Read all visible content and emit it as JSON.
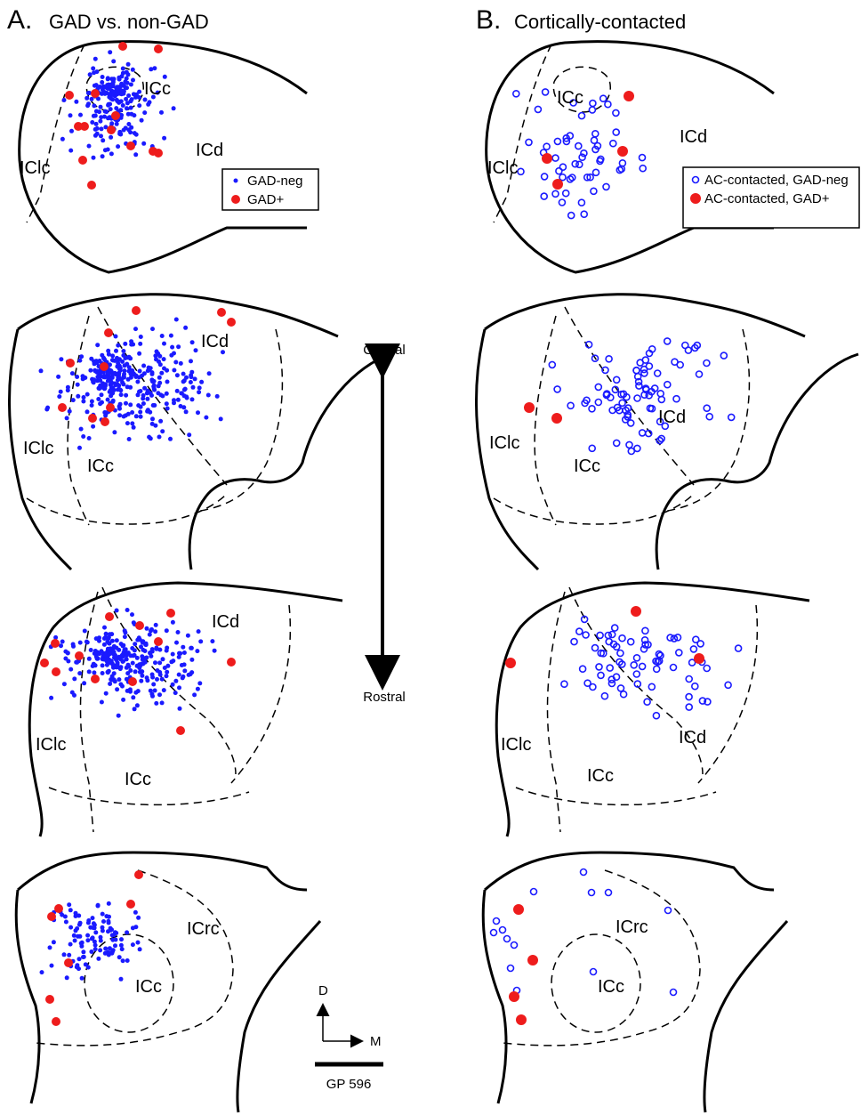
{
  "panels": [
    {
      "letter": "A.",
      "title": "GAD vs. non-GAD",
      "legend": [
        "GAD-neg",
        "GAD+"
      ],
      "sections": [
        {
          "labels": [
            "ICc",
            "ICd",
            "IClc"
          ]
        },
        {
          "labels": [
            "ICd",
            "IClc",
            "ICc"
          ]
        },
        {
          "labels": [
            "ICd",
            "IClc",
            "ICc"
          ]
        },
        {
          "labels": [
            "ICrc",
            "ICc"
          ]
        }
      ]
    },
    {
      "letter": "B.",
      "title": "Cortically-contacted",
      "legend": [
        "AC-contacted, GAD-neg",
        "AC-contacted, GAD+"
      ],
      "sections": [
        {
          "labels": [
            "ICc",
            "ICd",
            "IClc"
          ]
        },
        {
          "labels": [
            "ICd",
            "IClc",
            "ICc"
          ]
        },
        {
          "labels": [
            "ICd",
            "IClc",
            "ICc"
          ]
        },
        {
          "labels": [
            "ICrc",
            "ICc"
          ]
        }
      ]
    }
  ],
  "axis": {
    "caudal": "Caudal",
    "rostral": "Rostral"
  },
  "orientation": {
    "dorsal": "D",
    "medial": "M"
  },
  "scale_label": "GP 596"
}
